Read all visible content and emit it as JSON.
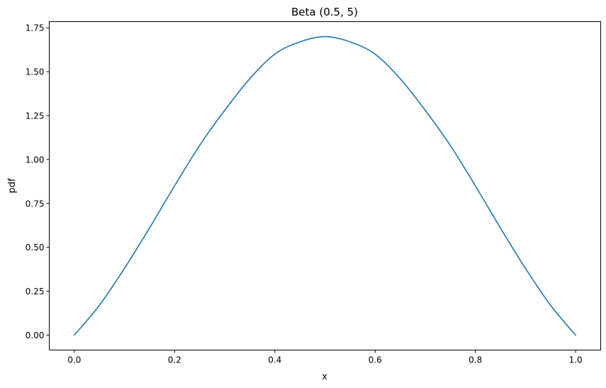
{
  "chart_data": {
    "type": "line",
    "title": "Beta (0.5, 5)",
    "xlabel": "x",
    "ylabel": "pdf",
    "xlim": [
      -0.05,
      1.05
    ],
    "ylim": [
      -0.085,
      1.785
    ],
    "xticks": [
      0.0,
      0.2,
      0.4,
      0.6,
      0.8,
      1.0
    ],
    "xtick_labels": [
      "0.0",
      "0.2",
      "0.4",
      "0.6",
      "0.8",
      "1.0"
    ],
    "yticks": [
      0.0,
      0.25,
      0.5,
      0.75,
      1.0,
      1.25,
      1.5,
      1.75
    ],
    "ytick_labels": [
      "0.00",
      "0.25",
      "0.50",
      "0.75",
      "1.00",
      "1.25",
      "1.50",
      "1.75"
    ],
    "grid": false,
    "legend": "none",
    "series": [
      {
        "color": "#1f77b4",
        "x": [
          0.0,
          0.05,
          0.1,
          0.15,
          0.2,
          0.25,
          0.3,
          0.35,
          0.4,
          0.45,
          0.5,
          0.55,
          0.6,
          0.65,
          0.7,
          0.75,
          0.8,
          0.85,
          0.9,
          0.95,
          1.0
        ],
        "y": [
          0.0,
          0.17,
          0.38,
          0.61,
          0.85,
          1.08,
          1.28,
          1.46,
          1.6,
          1.67,
          1.7,
          1.67,
          1.6,
          1.46,
          1.28,
          1.08,
          0.85,
          0.61,
          0.38,
          0.17,
          0.0
        ]
      }
    ]
  }
}
